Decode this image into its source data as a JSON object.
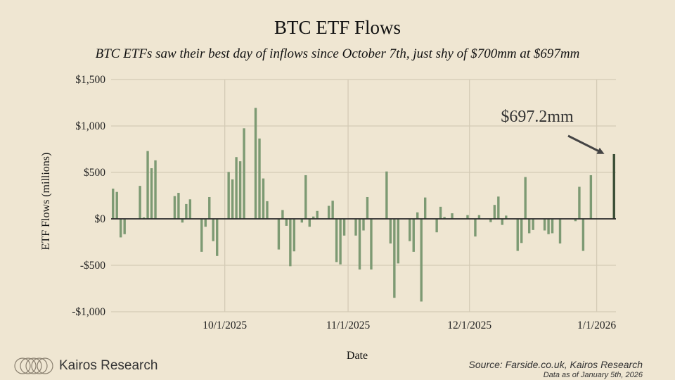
{
  "colors": {
    "background": "#efe6d2",
    "bar": "#7d9a73",
    "bar_last": "#3b4f36",
    "grid": "#d4cbb6",
    "axis": "#2b2b2b",
    "annotation": "#444444"
  },
  "brand": {
    "name": "Kairos Research",
    "logo_icon": "rings-logo-icon"
  },
  "source": {
    "line1": "Source: Farside.co.uk, Kairos Research",
    "line2": "Data as of January 5th, 2026"
  },
  "chart_data": {
    "type": "bar",
    "title": "BTC ETF Flows",
    "subtitle": "BTC ETFs saw their best day of inflows since October 7th, just shy of $700mm at $697mm",
    "xlabel": "Date",
    "ylabel": "ETF Flows (millions)",
    "ylim": [
      -1000,
      1500
    ],
    "yticks": [
      -1000,
      -500,
      0,
      500,
      1000,
      1500
    ],
    "ytick_labels": [
      "-$1,000",
      "-$500",
      "$0",
      "$500",
      "$1,000",
      "$1,500"
    ],
    "xticks": [
      {
        "label": "10/1/2025",
        "index": 29.5
      },
      {
        "label": "11/1/2025",
        "index": 61.5
      },
      {
        "label": "12/1/2025",
        "index": 93
      },
      {
        "label": "1/1/2026",
        "index": 126
      }
    ],
    "grid": true,
    "annotation": {
      "text": "$697.2mm",
      "target_index": 130
    },
    "values": [
      325,
      290,
      -200,
      -165,
      0,
      0,
      0,
      355,
      15,
      730,
      545,
      630,
      0,
      0,
      0,
      0,
      245,
      280,
      -40,
      160,
      210,
      0,
      0,
      -355,
      -85,
      235,
      -240,
      -400,
      0,
      0,
      505,
      425,
      665,
      620,
      975,
      0,
      0,
      1195,
      865,
      435,
      190,
      0,
      0,
      -330,
      95,
      -75,
      -510,
      -350,
      0,
      -40,
      470,
      -85,
      25,
      85,
      0,
      0,
      140,
      195,
      -465,
      -490,
      -180,
      0,
      0,
      -180,
      -545,
      -125,
      235,
      -545,
      0,
      0,
      0,
      510,
      -265,
      -850,
      -480,
      0,
      0,
      -240,
      -355,
      70,
      -890,
      230,
      0,
      0,
      -145,
      130,
      20,
      0,
      60,
      0,
      0,
      0,
      40,
      0,
      -190,
      40,
      0,
      0,
      -35,
      150,
      240,
      -65,
      35,
      0,
      0,
      -345,
      -260,
      450,
      -155,
      -120,
      0,
      0,
      -125,
      -165,
      -155,
      0,
      -265,
      0,
      0,
      0,
      -25,
      345,
      -345,
      0,
      470,
      0,
      0,
      0,
      0,
      0,
      697.2
    ]
  }
}
